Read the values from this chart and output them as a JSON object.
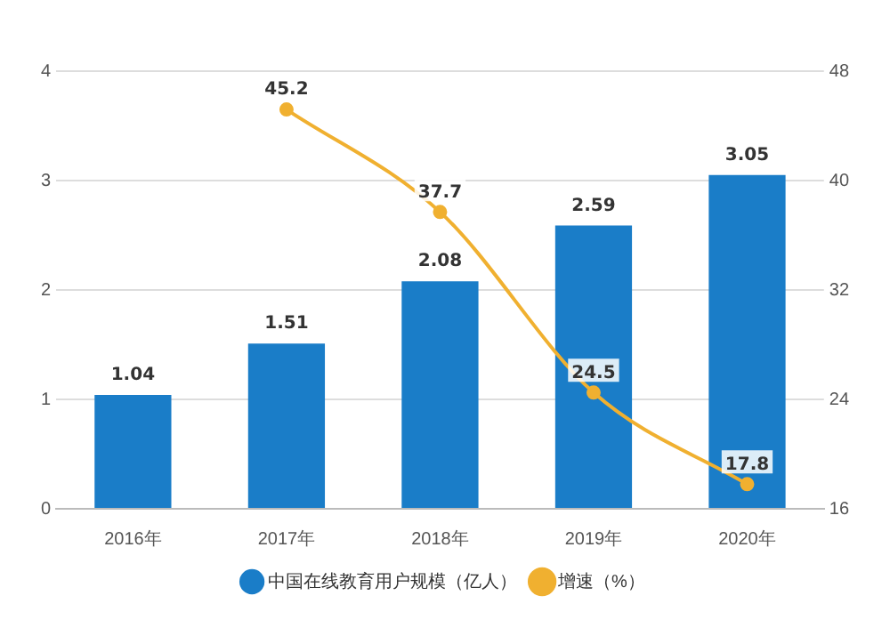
{
  "chart_data": {
    "type": "bar",
    "categories": [
      "2016年",
      "2017年",
      "2018年",
      "2019年",
      "2020年"
    ],
    "series": [
      {
        "name": "中国在线教育用户规模（亿人）",
        "color": "#1a7dc8",
        "values": [
          1.04,
          1.51,
          2.08,
          2.59,
          3.05
        ]
      },
      {
        "name": "增速（%）",
        "type": "line",
        "axis": "y2",
        "color": "#f0b030",
        "values": [
          null,
          45.2,
          37.7,
          24.5,
          17.8
        ]
      }
    ],
    "ylim": [
      0,
      4
    ],
    "yticks": [
      0,
      1,
      2,
      3,
      4
    ],
    "y2lim": [
      16,
      48
    ],
    "y2ticks": [
      16,
      24,
      32,
      40,
      48
    ],
    "grid": "y",
    "legend": "bottom",
    "marker": "circle",
    "data_labels": true
  }
}
